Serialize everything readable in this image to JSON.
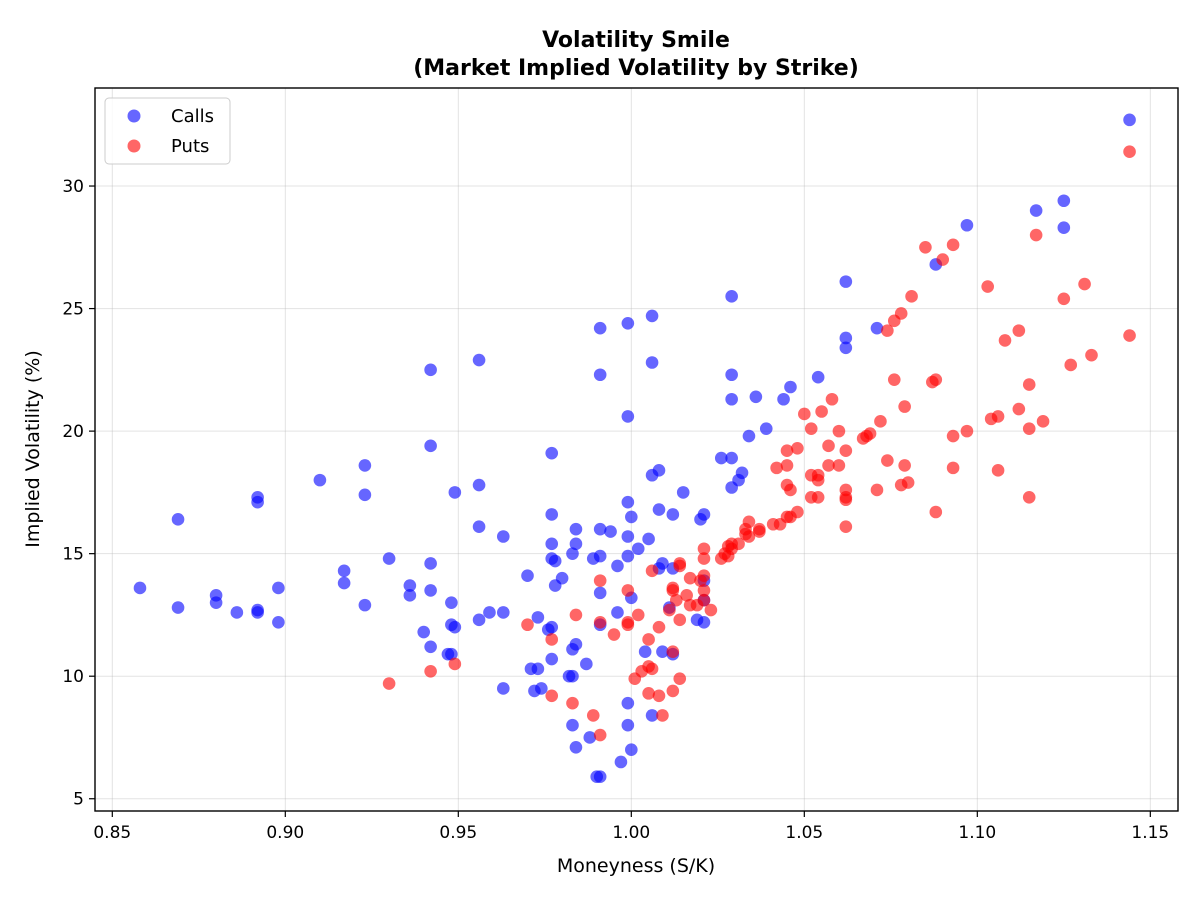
{
  "chart_data": {
    "type": "scatter",
    "title": "Volatility Smile",
    "subtitle": "(Market Implied Volatility by Strike)",
    "xlabel": "Moneyness (S/K)",
    "ylabel": "Implied Volatility (%)",
    "xlim": [
      0.845,
      1.158
    ],
    "ylim": [
      4.5,
      34.0
    ],
    "xticks": [
      0.85,
      0.9,
      0.95,
      1.0,
      1.05,
      1.1,
      1.15
    ],
    "xtick_labels": [
      "0.85",
      "0.90",
      "0.95",
      "1.00",
      "1.05",
      "1.10",
      "1.15"
    ],
    "yticks": [
      5,
      10,
      15,
      20,
      25,
      30
    ],
    "ytick_labels": [
      "5",
      "10",
      "15",
      "20",
      "25",
      "30"
    ],
    "grid": true,
    "legend": "top-left",
    "series": [
      {
        "name": "Calls",
        "color": "#0000ff",
        "points": [
          [
            0.858,
            13.6
          ],
          [
            0.869,
            16.4
          ],
          [
            0.869,
            12.8
          ],
          [
            0.88,
            13.3
          ],
          [
            0.88,
            13.0
          ],
          [
            0.886,
            12.6
          ],
          [
            0.892,
            17.3
          ],
          [
            0.892,
            17.1
          ],
          [
            0.892,
            12.7
          ],
          [
            0.892,
            12.6
          ],
          [
            0.898,
            13.6
          ],
          [
            0.898,
            12.2
          ],
          [
            0.91,
            18.0
          ],
          [
            0.917,
            14.3
          ],
          [
            0.917,
            13.8
          ],
          [
            0.923,
            18.6
          ],
          [
            0.923,
            17.4
          ],
          [
            0.923,
            12.9
          ],
          [
            0.93,
            14.8
          ],
          [
            0.936,
            13.7
          ],
          [
            0.936,
            13.3
          ],
          [
            0.94,
            11.8
          ],
          [
            0.942,
            22.5
          ],
          [
            0.942,
            19.4
          ],
          [
            0.942,
            14.6
          ],
          [
            0.942,
            13.5
          ],
          [
            0.942,
            11.2
          ],
          [
            0.947,
            10.9
          ],
          [
            0.948,
            13.0
          ],
          [
            0.948,
            12.1
          ],
          [
            0.948,
            10.9
          ],
          [
            0.949,
            17.5
          ],
          [
            0.949,
            12.0
          ],
          [
            0.956,
            22.9
          ],
          [
            0.956,
            17.8
          ],
          [
            0.956,
            16.1
          ],
          [
            0.956,
            12.3
          ],
          [
            0.959,
            12.6
          ],
          [
            0.963,
            15.7
          ],
          [
            0.963,
            12.6
          ],
          [
            0.963,
            9.5
          ],
          [
            0.97,
            14.1
          ],
          [
            0.971,
            10.3
          ],
          [
            0.972,
            9.4
          ],
          [
            0.973,
            12.4
          ],
          [
            0.973,
            10.3
          ],
          [
            0.974,
            9.5
          ],
          [
            0.976,
            11.9
          ],
          [
            0.977,
            19.1
          ],
          [
            0.977,
            16.6
          ],
          [
            0.977,
            15.4
          ],
          [
            0.977,
            14.8
          ],
          [
            0.977,
            12.0
          ],
          [
            0.977,
            10.7
          ],
          [
            0.978,
            14.7
          ],
          [
            0.978,
            13.7
          ],
          [
            0.98,
            14.0
          ],
          [
            0.982,
            10.0
          ],
          [
            0.983,
            15.0
          ],
          [
            0.983,
            11.1
          ],
          [
            0.983,
            10.0
          ],
          [
            0.983,
            8.0
          ],
          [
            0.984,
            16.0
          ],
          [
            0.984,
            15.4
          ],
          [
            0.984,
            11.3
          ],
          [
            0.984,
            7.1
          ],
          [
            0.987,
            10.5
          ],
          [
            0.988,
            7.5
          ],
          [
            0.989,
            14.8
          ],
          [
            0.99,
            5.9
          ],
          [
            0.991,
            24.2
          ],
          [
            0.991,
            22.3
          ],
          [
            0.991,
            16.0
          ],
          [
            0.991,
            14.9
          ],
          [
            0.991,
            13.4
          ],
          [
            0.991,
            12.1
          ],
          [
            0.991,
            5.9
          ],
          [
            0.994,
            15.9
          ],
          [
            0.996,
            14.5
          ],
          [
            0.996,
            12.6
          ],
          [
            0.997,
            6.5
          ],
          [
            0.999,
            24.4
          ],
          [
            0.999,
            20.6
          ],
          [
            0.999,
            17.1
          ],
          [
            0.999,
            15.7
          ],
          [
            0.999,
            14.9
          ],
          [
            0.999,
            8.9
          ],
          [
            0.999,
            8.0
          ],
          [
            1.0,
            16.5
          ],
          [
            1.0,
            13.2
          ],
          [
            1.0,
            7.0
          ],
          [
            1.002,
            15.2
          ],
          [
            1.004,
            11.0
          ],
          [
            1.005,
            15.6
          ],
          [
            1.006,
            24.7
          ],
          [
            1.006,
            22.8
          ],
          [
            1.006,
            18.2
          ],
          [
            1.006,
            8.4
          ],
          [
            1.008,
            18.4
          ],
          [
            1.008,
            16.8
          ],
          [
            1.008,
            14.4
          ],
          [
            1.009,
            11.0
          ],
          [
            1.009,
            14.6
          ],
          [
            1.011,
            12.8
          ],
          [
            1.012,
            16.6
          ],
          [
            1.012,
            14.4
          ],
          [
            1.012,
            10.9
          ],
          [
            1.015,
            17.5
          ],
          [
            1.019,
            12.3
          ],
          [
            1.02,
            16.4
          ],
          [
            1.021,
            16.6
          ],
          [
            1.021,
            13.9
          ],
          [
            1.021,
            13.1
          ],
          [
            1.021,
            12.2
          ],
          [
            1.026,
            18.9
          ],
          [
            1.029,
            25.5
          ],
          [
            1.029,
            22.3
          ],
          [
            1.029,
            21.3
          ],
          [
            1.029,
            18.9
          ],
          [
            1.029,
            17.7
          ],
          [
            1.031,
            18.0
          ],
          [
            1.032,
            18.3
          ],
          [
            1.034,
            19.8
          ],
          [
            1.036,
            21.4
          ],
          [
            1.039,
            20.1
          ],
          [
            1.044,
            21.3
          ],
          [
            1.046,
            21.8
          ],
          [
            1.054,
            22.2
          ],
          [
            1.062,
            26.1
          ],
          [
            1.062,
            23.8
          ],
          [
            1.062,
            23.4
          ],
          [
            1.071,
            24.2
          ],
          [
            1.088,
            26.8
          ],
          [
            1.097,
            28.4
          ],
          [
            1.117,
            29.0
          ],
          [
            1.125,
            29.4
          ],
          [
            1.125,
            28.3
          ],
          [
            1.144,
            32.7
          ]
        ]
      },
      {
        "name": "Puts",
        "color": "#ff0000",
        "points": [
          [
            0.93,
            9.7
          ],
          [
            0.942,
            10.2
          ],
          [
            0.949,
            10.5
          ],
          [
            0.97,
            12.1
          ],
          [
            0.977,
            11.5
          ],
          [
            0.977,
            9.2
          ],
          [
            0.983,
            8.9
          ],
          [
            0.984,
            12.5
          ],
          [
            0.989,
            8.4
          ],
          [
            0.991,
            13.9
          ],
          [
            0.991,
            12.2
          ],
          [
            0.991,
            7.6
          ],
          [
            0.995,
            11.7
          ],
          [
            0.999,
            13.5
          ],
          [
            0.999,
            12.2
          ],
          [
            0.999,
            12.1
          ],
          [
            1.001,
            9.9
          ],
          [
            1.002,
            12.5
          ],
          [
            1.003,
            10.2
          ],
          [
            1.005,
            11.5
          ],
          [
            1.005,
            10.4
          ],
          [
            1.005,
            9.3
          ],
          [
            1.006,
            14.3
          ],
          [
            1.006,
            10.3
          ],
          [
            1.008,
            12.0
          ],
          [
            1.008,
            9.2
          ],
          [
            1.009,
            8.4
          ],
          [
            1.011,
            12.7
          ],
          [
            1.012,
            13.6
          ],
          [
            1.012,
            13.5
          ],
          [
            1.012,
            11.0
          ],
          [
            1.012,
            9.4
          ],
          [
            1.013,
            13.1
          ],
          [
            1.014,
            14.6
          ],
          [
            1.014,
            14.5
          ],
          [
            1.014,
            12.3
          ],
          [
            1.014,
            9.9
          ],
          [
            1.016,
            13.3
          ],
          [
            1.017,
            12.9
          ],
          [
            1.017,
            14.0
          ],
          [
            1.019,
            12.9
          ],
          [
            1.02,
            13.9
          ],
          [
            1.021,
            15.2
          ],
          [
            1.021,
            14.8
          ],
          [
            1.021,
            14.1
          ],
          [
            1.021,
            13.5
          ],
          [
            1.021,
            13.1
          ],
          [
            1.023,
            12.7
          ],
          [
            1.026,
            14.8
          ],
          [
            1.027,
            15.0
          ],
          [
            1.028,
            15.3
          ],
          [
            1.028,
            14.9
          ],
          [
            1.029,
            15.4
          ],
          [
            1.029,
            15.2
          ],
          [
            1.031,
            15.4
          ],
          [
            1.033,
            16.0
          ],
          [
            1.033,
            15.8
          ],
          [
            1.034,
            16.3
          ],
          [
            1.034,
            15.7
          ],
          [
            1.037,
            16.0
          ],
          [
            1.037,
            15.9
          ],
          [
            1.041,
            16.2
          ],
          [
            1.042,
            18.5
          ],
          [
            1.043,
            16.2
          ],
          [
            1.045,
            19.2
          ],
          [
            1.045,
            18.6
          ],
          [
            1.045,
            17.8
          ],
          [
            1.045,
            16.5
          ],
          [
            1.046,
            17.6
          ],
          [
            1.046,
            16.5
          ],
          [
            1.048,
            19.3
          ],
          [
            1.048,
            16.7
          ],
          [
            1.05,
            20.7
          ],
          [
            1.052,
            20.1
          ],
          [
            1.052,
            18.2
          ],
          [
            1.052,
            17.3
          ],
          [
            1.054,
            18.2
          ],
          [
            1.054,
            18.0
          ],
          [
            1.054,
            17.3
          ],
          [
            1.055,
            20.8
          ],
          [
            1.057,
            19.4
          ],
          [
            1.057,
            18.6
          ],
          [
            1.058,
            21.3
          ],
          [
            1.06,
            18.6
          ],
          [
            1.06,
            20.0
          ],
          [
            1.062,
            19.2
          ],
          [
            1.062,
            17.6
          ],
          [
            1.062,
            17.3
          ],
          [
            1.062,
            17.2
          ],
          [
            1.062,
            16.1
          ],
          [
            1.067,
            19.7
          ],
          [
            1.068,
            19.8
          ],
          [
            1.069,
            19.9
          ],
          [
            1.071,
            17.6
          ],
          [
            1.072,
            20.4
          ],
          [
            1.074,
            24.1
          ],
          [
            1.074,
            18.8
          ],
          [
            1.076,
            24.5
          ],
          [
            1.076,
            22.1
          ],
          [
            1.078,
            24.8
          ],
          [
            1.078,
            17.8
          ],
          [
            1.079,
            21.0
          ],
          [
            1.079,
            18.6
          ],
          [
            1.08,
            17.9
          ],
          [
            1.081,
            25.5
          ],
          [
            1.085,
            27.5
          ],
          [
            1.087,
            22.0
          ],
          [
            1.088,
            22.1
          ],
          [
            1.088,
            16.7
          ],
          [
            1.09,
            27.0
          ],
          [
            1.093,
            27.6
          ],
          [
            1.093,
            19.8
          ],
          [
            1.093,
            18.5
          ],
          [
            1.097,
            20.0
          ],
          [
            1.103,
            25.9
          ],
          [
            1.104,
            20.5
          ],
          [
            1.106,
            20.6
          ],
          [
            1.106,
            18.4
          ],
          [
            1.108,
            23.7
          ],
          [
            1.112,
            24.1
          ],
          [
            1.112,
            20.9
          ],
          [
            1.115,
            21.9
          ],
          [
            1.115,
            20.1
          ],
          [
            1.115,
            17.3
          ],
          [
            1.117,
            28.0
          ],
          [
            1.119,
            20.4
          ],
          [
            1.125,
            25.4
          ],
          [
            1.127,
            22.7
          ],
          [
            1.131,
            26.0
          ],
          [
            1.133,
            23.1
          ],
          [
            1.144,
            31.4
          ],
          [
            1.144,
            23.9
          ]
        ]
      }
    ]
  }
}
